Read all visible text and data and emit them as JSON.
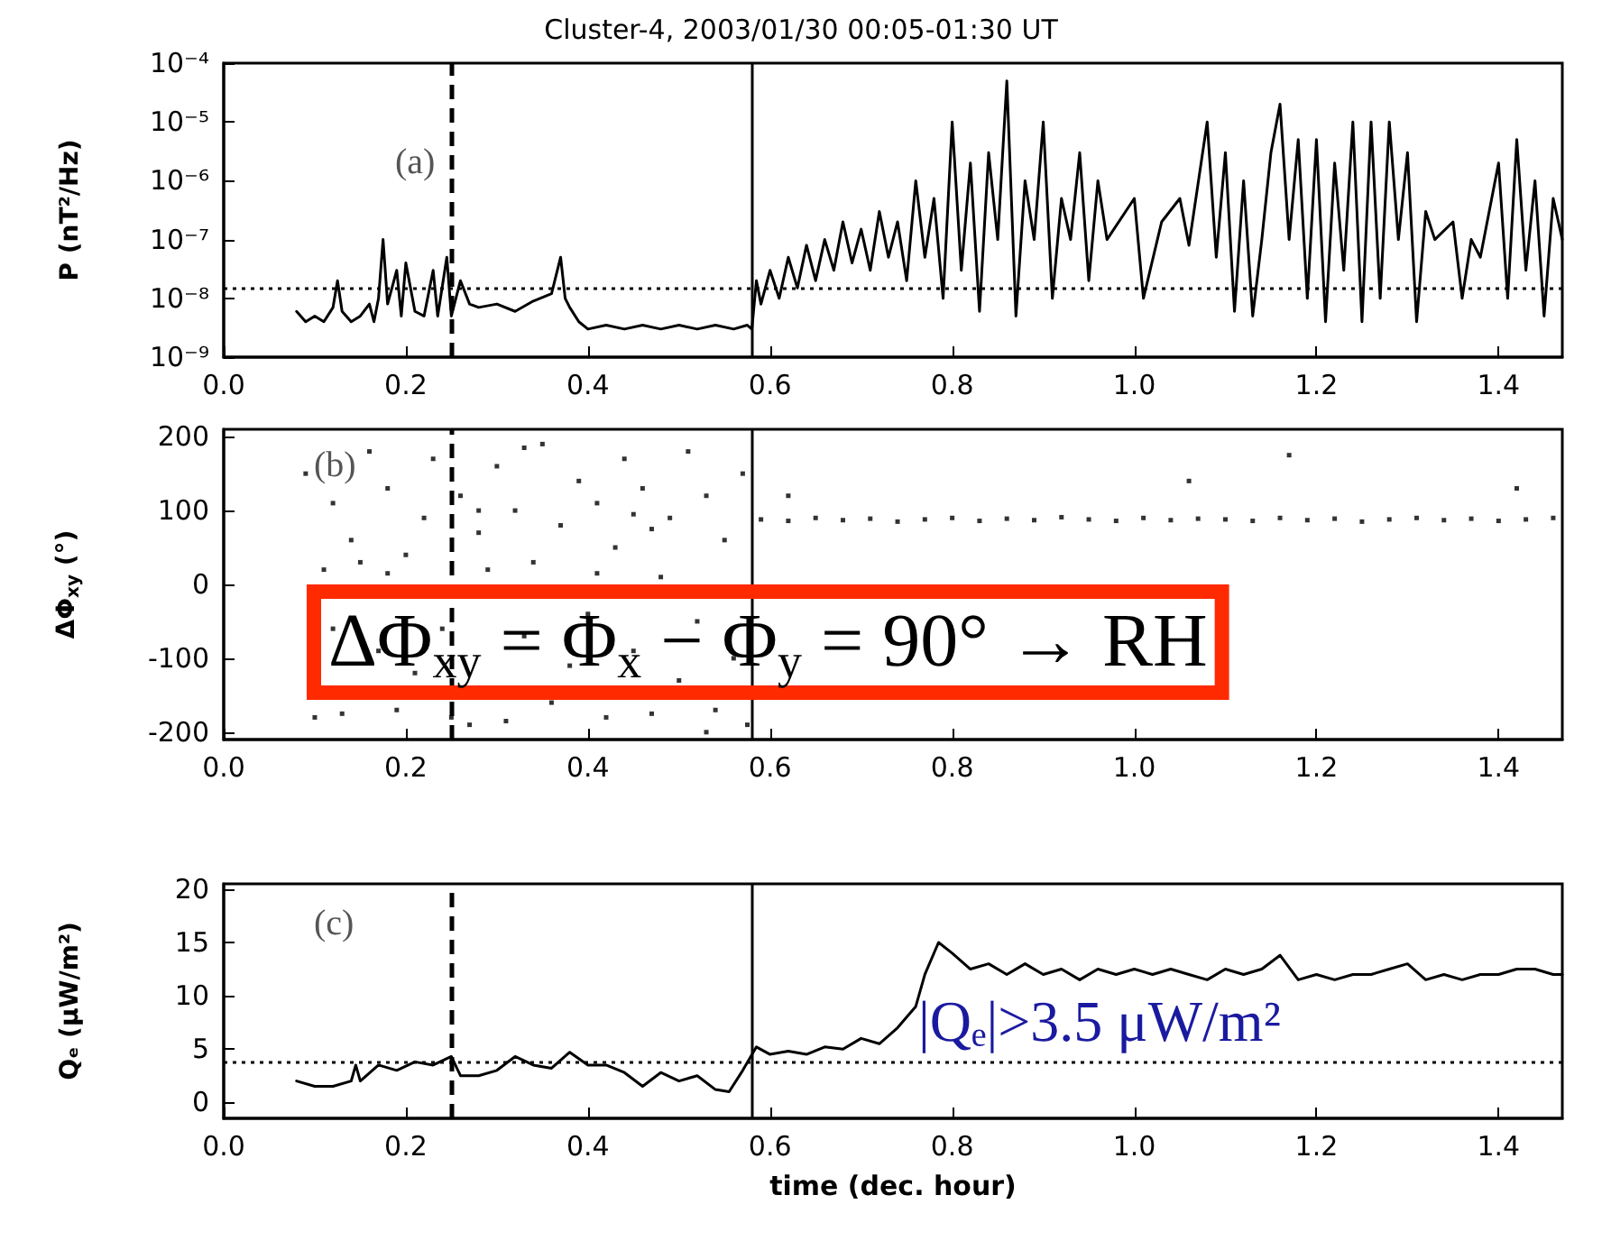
{
  "chart_data": [
    {
      "type": "line",
      "title": "Cluster-4, 2003/01/30 00:05-01:30 UT",
      "ylabel": "P (nT²/Hz)",
      "log": "y",
      "grid": false,
      "line_style": "solid",
      "annotations": [
        "(a)"
      ],
      "xlim": [
        0,
        1.47
      ],
      "xticks": [
        {
          "value": 0,
          "label": "0.0"
        },
        {
          "value": 0.2,
          "label": "0.2"
        },
        {
          "value": 0.4,
          "label": "0.4"
        },
        {
          "value": 0.6,
          "label": "0.6"
        },
        {
          "value": 0.8,
          "label": "0.8"
        },
        {
          "value": 1,
          "label": "1.0"
        },
        {
          "value": 1.2,
          "label": "1.2"
        },
        {
          "value": 1.4,
          "label": "1.4"
        }
      ],
      "ylim": [
        1e-09,
        0.0001
      ],
      "yticks": [
        {
          "value": 1e-09,
          "label": "10⁻⁹"
        },
        {
          "value": 1e-08,
          "label": "10⁻⁸"
        },
        {
          "value": 1e-07,
          "label": "10⁻⁷"
        },
        {
          "value": 1e-06,
          "label": "10⁻⁶"
        },
        {
          "value": 1e-05,
          "label": "10⁻⁵"
        },
        {
          "value": 0.0001,
          "label": "10⁻⁴"
        }
      ],
      "ref_lines": [
        {
          "axis": "x",
          "value": 0.25,
          "line_style": "dashed",
          "color": "#000000"
        },
        {
          "axis": "x",
          "value": 0.58,
          "line_style": "solid",
          "color": "#000000"
        },
        {
          "axis": "y",
          "value": 1.5e-08,
          "line_style": "dotted",
          "color": "#000000"
        }
      ],
      "series": [
        {
          "color": "#000000",
          "x": [
            0.08,
            0.09,
            0.1,
            0.11,
            0.12,
            0.125,
            0.13,
            0.14,
            0.15,
            0.16,
            0.165,
            0.17,
            0.175,
            0.18,
            0.19,
            0.195,
            0.2,
            0.21,
            0.22,
            0.23,
            0.235,
            0.245,
            0.25,
            0.26,
            0.27,
            0.28,
            0.3,
            0.32,
            0.34,
            0.36,
            0.37,
            0.375,
            0.38,
            0.39,
            0.4,
            0.42,
            0.44,
            0.46,
            0.48,
            0.5,
            0.52,
            0.54,
            0.56,
            0.575,
            0.58,
            0.585,
            0.59,
            0.6,
            0.61,
            0.62,
            0.63,
            0.64,
            0.65,
            0.66,
            0.67,
            0.68,
            0.69,
            0.7,
            0.71,
            0.72,
            0.73,
            0.74,
            0.75,
            0.76,
            0.77,
            0.78,
            0.79,
            0.8,
            0.81,
            0.82,
            0.83,
            0.84,
            0.85,
            0.86,
            0.87,
            0.88,
            0.89,
            0.9,
            0.91,
            0.92,
            0.93,
            0.94,
            0.95,
            0.96,
            0.97,
            1.0,
            1.01,
            1.03,
            1.05,
            1.06,
            1.08,
            1.09,
            1.1,
            1.11,
            1.12,
            1.13,
            1.14,
            1.15,
            1.16,
            1.17,
            1.18,
            1.19,
            1.2,
            1.21,
            1.22,
            1.23,
            1.24,
            1.25,
            1.26,
            1.27,
            1.28,
            1.29,
            1.3,
            1.31,
            1.32,
            1.33,
            1.35,
            1.36,
            1.37,
            1.38,
            1.4,
            1.41,
            1.42,
            1.43,
            1.44,
            1.45,
            1.46,
            1.47
          ],
          "values": [
            6e-09,
            4e-09,
            5e-09,
            4e-09,
            7e-09,
            2e-08,
            6e-09,
            4e-09,
            5e-09,
            8e-09,
            4e-09,
            1e-08,
            1e-07,
            8e-09,
            3e-08,
            5e-09,
            4e-08,
            6e-09,
            5e-09,
            3e-08,
            5e-09,
            5e-08,
            5e-09,
            2e-08,
            8e-09,
            7e-09,
            8e-09,
            6e-09,
            9e-09,
            1.2e-08,
            5e-08,
            1e-08,
            7e-09,
            4e-09,
            3e-09,
            3.5e-09,
            3e-09,
            3.5e-09,
            3e-09,
            3.5e-09,
            3e-09,
            3.5e-09,
            3e-09,
            3.5e-09,
            3e-09,
            2e-08,
            8e-09,
            3e-08,
            1e-08,
            5e-08,
            1.5e-08,
            8e-08,
            2e-08,
            1e-07,
            3e-08,
            2e-07,
            4e-08,
            1.5e-07,
            3e-08,
            3e-07,
            5e-08,
            2e-07,
            2e-08,
            1e-06,
            5e-08,
            5e-07,
            1e-08,
            1e-05,
            3e-08,
            2e-06,
            6e-09,
            3e-06,
            1e-07,
            5e-05,
            5e-09,
            1e-06,
            1e-07,
            1e-05,
            1e-08,
            5e-07,
            1e-07,
            3e-06,
            2e-08,
            1e-06,
            1e-07,
            5e-07,
            1e-08,
            2e-07,
            5e-07,
            8e-08,
            1e-05,
            5e-08,
            3e-06,
            6e-09,
            1e-06,
            5e-09,
            1e-07,
            3e-06,
            2e-05,
            1e-07,
            5e-06,
            1e-08,
            5e-06,
            4e-09,
            2e-06,
            3e-08,
            1e-05,
            4e-09,
            1e-05,
            1e-08,
            1e-05,
            1e-07,
            3e-06,
            4e-09,
            3e-07,
            1e-07,
            2e-07,
            1e-08,
            1e-07,
            5e-08,
            2e-06,
            1e-08,
            5e-06,
            3e-08,
            1e-06,
            5e-09,
            5e-07,
            1e-07
          ]
        }
      ]
    },
    {
      "type": "scatter",
      "ylabel": "ΔΦ$_{xy}$ (°)",
      "grid": false,
      "marker": "square",
      "annotations": [
        "(b)",
        "ΔΦ$_{xy}$ = Φ$_{x}$ − Φ$_{y}$ = 90° → RH"
      ],
      "xlim": [
        0,
        1.47
      ],
      "xticks": [
        {
          "value": 0,
          "label": "0.0"
        },
        {
          "value": 0.2,
          "label": "0.2"
        },
        {
          "value": 0.4,
          "label": "0.4"
        },
        {
          "value": 0.6,
          "label": "0.6"
        },
        {
          "value": 0.8,
          "label": "0.8"
        },
        {
          "value": 1,
          "label": "1.0"
        },
        {
          "value": 1.2,
          "label": "1.2"
        },
        {
          "value": 1.4,
          "label": "1.4"
        }
      ],
      "ylim": [
        -210,
        210
      ],
      "yticks": [
        -200,
        -100,
        0,
        100,
        200
      ],
      "ref_lines": [
        {
          "axis": "x",
          "value": 0.25,
          "line_style": "dashed",
          "color": "#000000"
        },
        {
          "axis": "x",
          "value": 0.58,
          "line_style": "solid",
          "color": "#000000"
        }
      ],
      "series": [
        {
          "color": "#000000",
          "x": [
            0.09,
            0.1,
            0.11,
            0.12,
            0.13,
            0.14,
            0.15,
            0.16,
            0.17,
            0.18,
            0.19,
            0.2,
            0.21,
            0.22,
            0.23,
            0.24,
            0.26,
            0.27,
            0.28,
            0.29,
            0.3,
            0.31,
            0.32,
            0.33,
            0.34,
            0.35,
            0.36,
            0.37,
            0.38,
            0.39,
            0.4,
            0.41,
            0.42,
            0.43,
            0.44,
            0.45,
            0.46,
            0.47,
            0.48,
            0.49,
            0.5,
            0.51,
            0.52,
            0.53,
            0.54,
            0.55,
            0.56,
            0.57,
            0.575,
            0.12,
            0.18,
            0.25,
            0.33,
            0.41,
            0.47,
            0.53,
            0.28,
            0.45,
            0.59,
            0.62,
            0.65,
            0.68,
            0.71,
            0.74,
            0.77,
            0.8,
            0.83,
            0.86,
            0.89,
            0.92,
            0.95,
            0.98,
            1.01,
            1.04,
            1.07,
            1.1,
            1.13,
            1.16,
            1.19,
            1.22,
            1.25,
            1.28,
            1.31,
            1.34,
            1.37,
            1.4,
            1.43,
            1.46,
            0.62,
            1.06,
            1.17,
            1.42
          ],
          "values": [
            150,
            -180,
            20,
            110,
            -175,
            60,
            30,
            180,
            -90,
            130,
            -170,
            40,
            -120,
            90,
            170,
            -60,
            120,
            -190,
            70,
            20,
            160,
            -185,
            100,
            -70,
            30,
            190,
            -160,
            80,
            -110,
            140,
            -40,
            110,
            -180,
            50,
            170,
            -90,
            130,
            -175,
            10,
            90,
            -130,
            180,
            -50,
            120,
            -170,
            60,
            -100,
            150,
            -190,
            -60,
            15,
            -180,
            185,
            15,
            75,
            -200,
            100,
            95,
            88,
            86,
            90,
            87,
            89,
            85,
            88,
            90,
            86,
            89,
            87,
            91,
            88,
            86,
            90,
            87,
            89,
            88,
            86,
            90,
            87,
            89,
            85,
            88,
            90,
            87,
            89,
            86,
            88,
            90,
            120,
            140,
            175,
            130
          ]
        }
      ]
    },
    {
      "type": "line",
      "ylabel": "Qₑ (μW/m²)",
      "xlabel": "time (dec. hour)",
      "grid": false,
      "line_style": "solid",
      "annotations": [
        "(c)",
        "|Qₑ|>3.5 μW/m²"
      ],
      "xlim": [
        0,
        1.47
      ],
      "xticks": [
        {
          "value": 0,
          "label": "0.0"
        },
        {
          "value": 0.2,
          "label": "0.2"
        },
        {
          "value": 0.4,
          "label": "0.4"
        },
        {
          "value": 0.6,
          "label": "0.6"
        },
        {
          "value": 0.8,
          "label": "0.8"
        },
        {
          "value": 1,
          "label": "1.0"
        },
        {
          "value": 1.2,
          "label": "1.2"
        },
        {
          "value": 1.4,
          "label": "1.4"
        }
      ],
      "ylim": [
        -1.5,
        20.5
      ],
      "yticks": [
        0,
        5,
        10,
        15,
        20
      ],
      "ref_lines": [
        {
          "axis": "x",
          "value": 0.25,
          "line_style": "dashed",
          "color": "#000000"
        },
        {
          "axis": "x",
          "value": 0.58,
          "line_style": "solid",
          "color": "#000000"
        },
        {
          "axis": "y",
          "value": 3.8,
          "line_style": "dotted",
          "color": "#000000"
        }
      ],
      "series": [
        {
          "color": "#000000",
          "x": [
            0.08,
            0.1,
            0.12,
            0.14,
            0.145,
            0.15,
            0.17,
            0.19,
            0.21,
            0.23,
            0.25,
            0.26,
            0.28,
            0.3,
            0.32,
            0.34,
            0.36,
            0.38,
            0.4,
            0.42,
            0.44,
            0.46,
            0.48,
            0.5,
            0.52,
            0.54,
            0.555,
            0.57,
            0.585,
            0.6,
            0.62,
            0.64,
            0.66,
            0.68,
            0.7,
            0.72,
            0.74,
            0.76,
            0.77,
            0.785,
            0.8,
            0.82,
            0.84,
            0.86,
            0.88,
            0.9,
            0.92,
            0.94,
            0.96,
            0.98,
            1.0,
            1.02,
            1.04,
            1.06,
            1.08,
            1.1,
            1.12,
            1.14,
            1.16,
            1.18,
            1.2,
            1.22,
            1.24,
            1.26,
            1.28,
            1.3,
            1.32,
            1.34,
            1.36,
            1.38,
            1.4,
            1.42,
            1.44,
            1.46,
            1.47
          ],
          "values": [
            2,
            1.5,
            1.5,
            2,
            3.5,
            2,
            3.5,
            3,
            3.8,
            3.5,
            4.3,
            2.5,
            2.5,
            3,
            4.3,
            3.5,
            3.2,
            4.7,
            3.5,
            3.5,
            2.8,
            1.5,
            2.8,
            2,
            2.5,
            1.2,
            1,
            3,
            5.2,
            4.5,
            4.8,
            4.5,
            5.2,
            5,
            6,
            5.5,
            7,
            9,
            12,
            15,
            14,
            12.5,
            13,
            12,
            13,
            12,
            12.5,
            11.5,
            12.5,
            12,
            12.5,
            12,
            12.5,
            12,
            11.5,
            12.5,
            12,
            12.5,
            13.8,
            11.5,
            12,
            11.5,
            12,
            12,
            12.5,
            13,
            11.5,
            12,
            11.5,
            12,
            12,
            12.5,
            12.5,
            12,
            12
          ]
        }
      ]
    }
  ]
}
